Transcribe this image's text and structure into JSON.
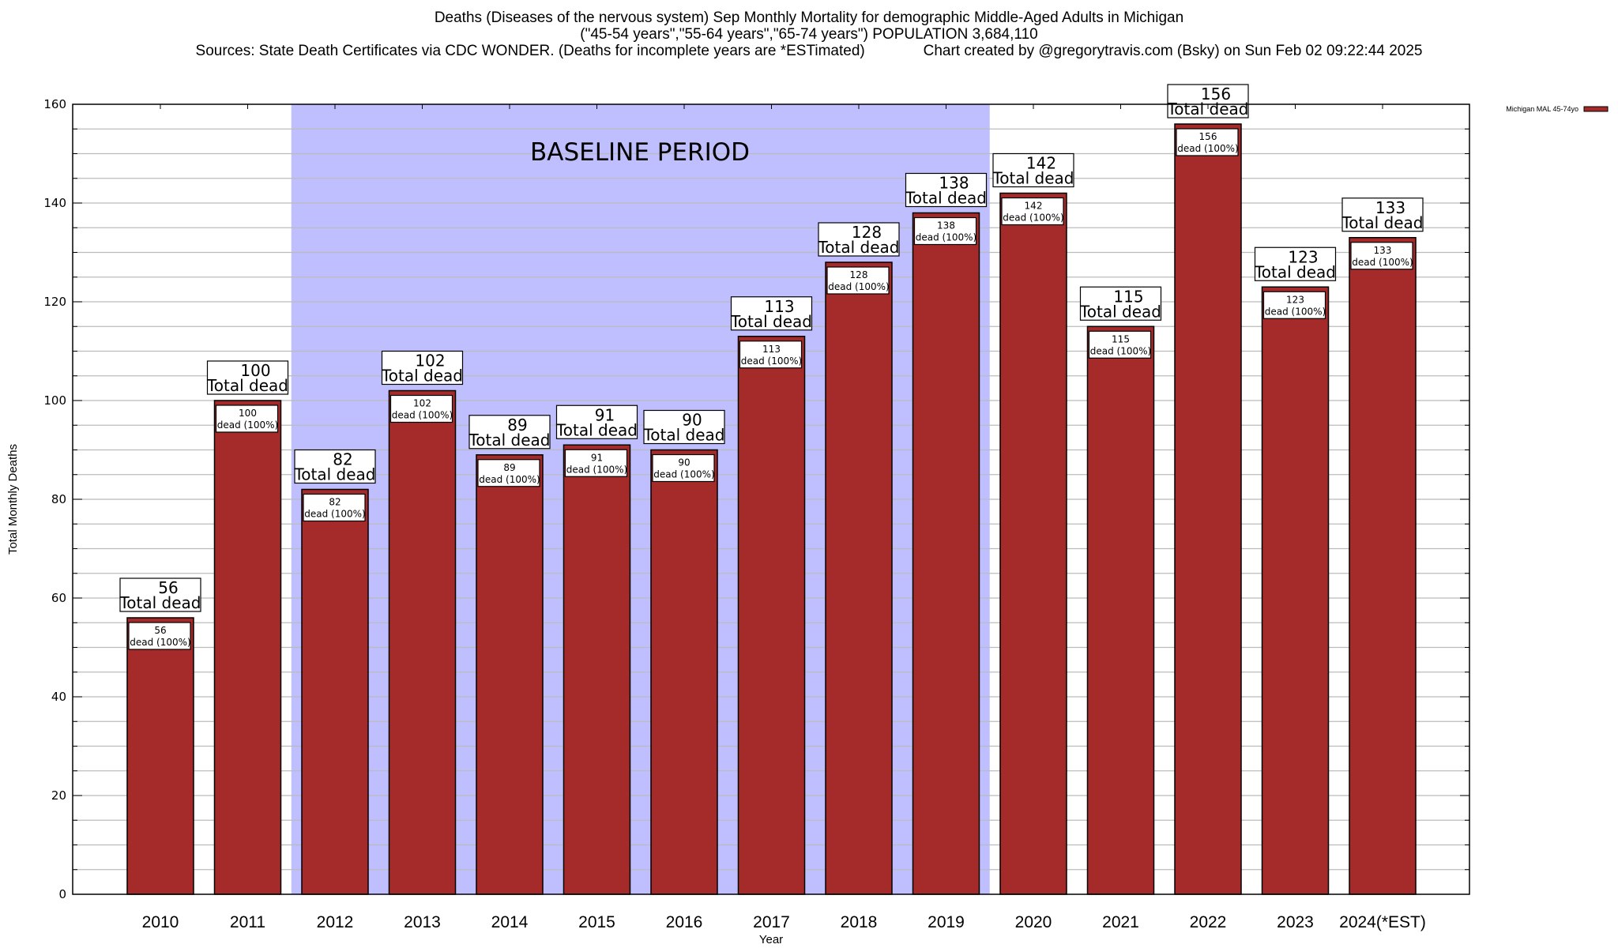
{
  "chart_data": {
    "type": "bar",
    "title_lines": [
      "Deaths (Diseases of the nervous system) Sep Monthly Mortality for demographic Middle-Aged Adults in Michigan",
      "(\"45-54 years\",\"55-64 years\",\"65-74 years\") POPULATION 3,684,110",
      "Sources: State Death Certificates via CDC WONDER. (Deaths for incomplete years are *ESTimated)              Chart created by @gregorytravis.com (Bsky) on Sun Feb 02 09:22:44 2025"
    ],
    "xlabel": "Year",
    "ylabel": "Total Monthly Deaths",
    "ylim": [
      0,
      160
    ],
    "yticks": [
      0,
      20,
      40,
      60,
      80,
      100,
      120,
      140,
      160
    ],
    "ytick_labels": [
      "0",
      "20",
      "40",
      "60",
      "80",
      "100",
      "120",
      "140",
      "160"
    ],
    "minor_grid_step": 5,
    "grid": true,
    "categories": [
      "2010",
      "2011",
      "2012",
      "2013",
      "2014",
      "2015",
      "2016",
      "2017",
      "2018",
      "2019",
      "2020",
      "2021",
      "2022",
      "2023",
      "2024(*EST)"
    ],
    "series": [
      {
        "name": "Michigan MAL 45-74yo",
        "color": "#a52a2a",
        "values": [
          56,
          100,
          82,
          102,
          89,
          91,
          90,
          113,
          128,
          138,
          142,
          115,
          156,
          123,
          133
        ]
      }
    ],
    "total_label_suffix": "Total dead",
    "inner_label_suffix": "dead (100%)",
    "legend": {
      "position": "top-right",
      "entries": [
        "Michigan MAL 45-74yo"
      ]
    },
    "annotation": {
      "text": "BASELINE PERIOD",
      "span_categories": [
        "2012",
        "2019"
      ],
      "color": "#bfbfff"
    }
  }
}
